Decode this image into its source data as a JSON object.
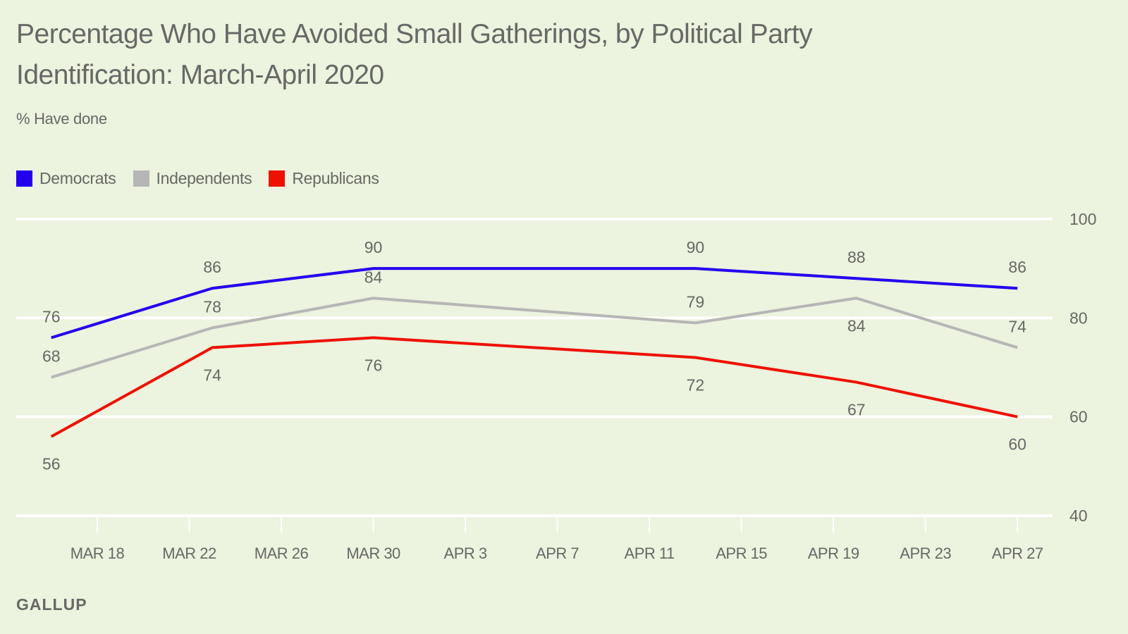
{
  "header": {
    "title": "Percentage Who Have Avoided Small Gatherings, by Political Party Identification: March-April 2020",
    "subtitle": "% Have done"
  },
  "footer": {
    "source": "GALLUP"
  },
  "chart_data": {
    "type": "line",
    "title": "Percentage Who Have Avoided Small Gatherings, by Political Party Identification: March-April 2020",
    "subtitle": "% Have done",
    "xlabel": "",
    "ylabel": "",
    "x": [
      "2020-03-16",
      "2020-03-23",
      "2020-03-30",
      "2020-04-13",
      "2020-04-20",
      "2020-04-27"
    ],
    "xlim": [
      "2020-03-14",
      "2020-04-28"
    ],
    "xticks": [
      {
        "date": "2020-03-18",
        "label": "MAR 18"
      },
      {
        "date": "2020-03-22",
        "label": "MAR 22"
      },
      {
        "date": "2020-03-26",
        "label": "MAR 26"
      },
      {
        "date": "2020-03-30",
        "label": "MAR 30"
      },
      {
        "date": "2020-04-03",
        "label": "APR 3"
      },
      {
        "date": "2020-04-07",
        "label": "APR 7"
      },
      {
        "date": "2020-04-11",
        "label": "APR 11"
      },
      {
        "date": "2020-04-15",
        "label": "APR 15"
      },
      {
        "date": "2020-04-19",
        "label": "APR 19"
      },
      {
        "date": "2020-04-23",
        "label": "APR 23"
      },
      {
        "date": "2020-04-27",
        "label": "APR 27"
      }
    ],
    "ylim": [
      40,
      100
    ],
    "yticks": [
      40,
      60,
      80,
      100
    ],
    "y_axis_side": "right",
    "grid": true,
    "legend_position": "top-left",
    "series": [
      {
        "name": "Democrats",
        "color": "#2200ee",
        "values": [
          76,
          86,
          90,
          90,
          88,
          86
        ],
        "label_side": [
          "above",
          "above",
          "above",
          "above",
          "above",
          "above"
        ]
      },
      {
        "name": "Independents",
        "color": "#b6b6b6",
        "values": [
          68,
          78,
          84,
          79,
          84,
          74
        ],
        "label_side": [
          "above",
          "above",
          "above",
          "above",
          "below",
          "above"
        ]
      },
      {
        "name": "Republicans",
        "color": "#ee1100",
        "values": [
          56,
          74,
          76,
          72,
          67,
          60
        ],
        "label_side": [
          "below",
          "below",
          "below",
          "below",
          "below",
          "below"
        ]
      }
    ]
  }
}
